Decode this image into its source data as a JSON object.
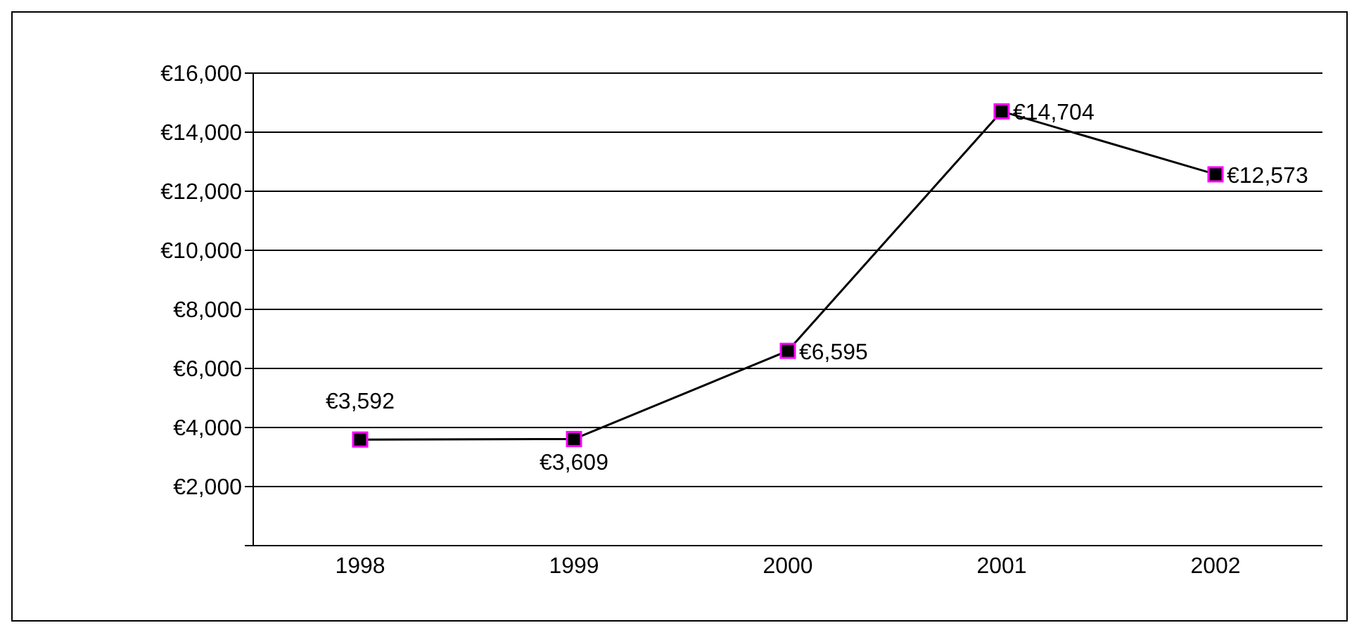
{
  "chart_data": {
    "type": "line",
    "categories": [
      "1998",
      "1999",
      "2000",
      "2001",
      "2002"
    ],
    "series": [
      {
        "color": "#000000",
        "values": [
          3592,
          3609,
          6595,
          14704,
          12573
        ],
        "value_labels": [
          "€3,592",
          "€3,609",
          "€6,595",
          "€14,704",
          "€12,573"
        ]
      }
    ],
    "ylim": [
      0,
      16000
    ],
    "yticks": [
      {
        "value": 0,
        "label": null
      },
      {
        "value": 2000,
        "label": "€2,000"
      },
      {
        "value": 4000,
        "label": "€4,000"
      },
      {
        "value": 6000,
        "label": "€6,000"
      },
      {
        "value": 8000,
        "label": "€8,000"
      },
      {
        "value": 10000,
        "label": "€10,000"
      },
      {
        "value": 12000,
        "label": "€12,000"
      },
      {
        "value": 14000,
        "label": "€14,000"
      },
      {
        "value": 16000,
        "label": "€16,000"
      }
    ],
    "grid": "y",
    "legend": false,
    "marker": "square",
    "line_style": "solid"
  }
}
